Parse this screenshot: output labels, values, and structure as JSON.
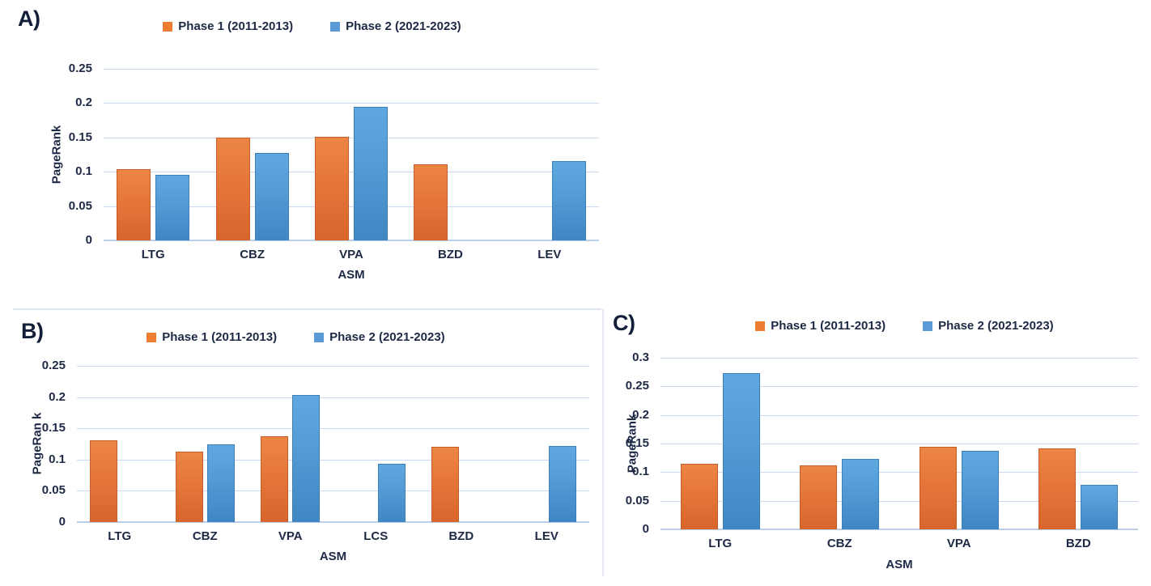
{
  "figure": {
    "background": "#ffffff",
    "text_color": "#1d2945",
    "gridline_color": "#cbdaf0",
    "accent_orange": "#ED7D31",
    "accent_blue": "#5B9BD5"
  },
  "chart_data": [
    {
      "type": "bar",
      "panel_letter": "A)",
      "ylabel": "PageRank",
      "xlabel": "ASM",
      "ylim": [
        0,
        0.25
      ],
      "grid": true,
      "legend_position": "top-center",
      "y_ticks": [
        0,
        0.05,
        0.1,
        0.15,
        0.2,
        0.25
      ],
      "y_tick_labels": [
        "0",
        "0.05",
        "0.1",
        "0.15",
        "0.2",
        "0.25"
      ],
      "categories": [
        "LTG",
        "CBZ",
        "VPA",
        "BZD",
        "LEV"
      ],
      "series": [
        {
          "name": "Phase 1 (2011-2013)",
          "color": "#ED7D31",
          "values": [
            0.104,
            0.15,
            0.151,
            0.111,
            null
          ]
        },
        {
          "name": "Phase 2 (2021-2023)",
          "color": "#5B9BD5",
          "values": [
            0.095,
            0.127,
            0.195,
            null,
            0.115
          ]
        }
      ]
    },
    {
      "type": "bar",
      "panel_letter": "B)",
      "ylabel": "PageRan k",
      "xlabel": "ASM",
      "ylim": [
        0,
        0.25
      ],
      "grid": true,
      "legend_position": "top-center",
      "y_ticks": [
        0,
        0.05,
        0.1,
        0.15,
        0.2,
        0.25
      ],
      "y_tick_labels": [
        "0",
        "0.05",
        "0.1",
        "0.15",
        "0.2",
        "0.25"
      ],
      "categories": [
        "LTG",
        "CBZ",
        "VPA",
        "LCS",
        "BZD",
        "LEV"
      ],
      "series": [
        {
          "name": "Phase 1 (2011-2013)",
          "color": "#ED7D31",
          "values": [
            0.131,
            0.113,
            0.137,
            null,
            0.12,
            null
          ]
        },
        {
          "name": "Phase 2 (2021-2023)",
          "color": "#5B9BD5",
          "values": [
            null,
            0.125,
            0.204,
            0.093,
            null,
            0.122
          ]
        }
      ]
    },
    {
      "type": "bar",
      "panel_letter": "C)",
      "ylabel": "PageRank",
      "xlabel": "ASM",
      "ylim": [
        0,
        0.3
      ],
      "grid": true,
      "legend_position": "top-center",
      "y_ticks": [
        0,
        0.05,
        0.1,
        0.15,
        0.2,
        0.25,
        0.3
      ],
      "y_tick_labels": [
        "0",
        "0.05",
        "0.1",
        "0.15",
        "0.2",
        "0.25",
        "0.3"
      ],
      "categories": [
        "LTG",
        "CBZ",
        "VPA",
        "BZD"
      ],
      "series": [
        {
          "name": "Phase 1 (2011-2013)",
          "color": "#ED7D31",
          "values": [
            0.114,
            0.112,
            0.144,
            0.141
          ]
        },
        {
          "name": "Phase 2 (2021-2023)",
          "color": "#5B9BD5",
          "values": [
            0.273,
            0.123,
            0.137,
            0.078
          ]
        }
      ]
    }
  ]
}
